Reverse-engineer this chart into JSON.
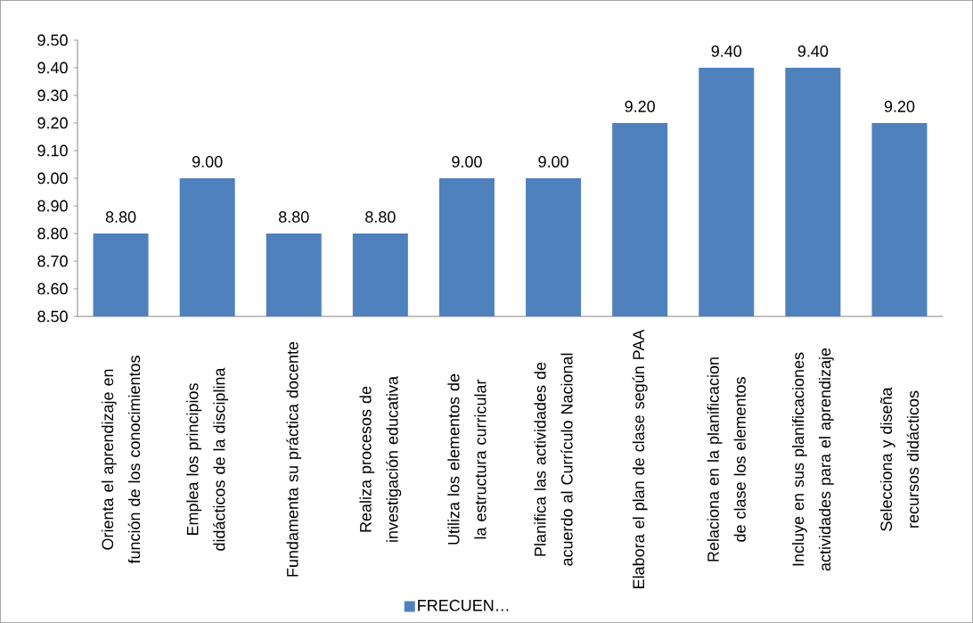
{
  "chart_data": {
    "type": "bar",
    "categories": [
      "Orienta el aprendizaje en función de los conocimientos",
      "Emplea los principios didácticos de la disciplina",
      "Fundamenta su práctica docente",
      "Realiza procesos de investigación educativa",
      "Utiliza los elementos de la estructura curricular",
      "Planifica las actividades de acuerdo al Currículo Nacional",
      "Elabora el plan de clase según PAA",
      "Relaciona en la planificacion de clase los elementos",
      "Incluye en sus planificaciones actividades para el aprendizaje",
      "Selecciona y diseña recursos didácticos"
    ],
    "series": [
      {
        "name": "FRECUEN…",
        "color": "#4f81bd",
        "values": [
          8.8,
          9.0,
          8.8,
          8.8,
          9.0,
          9.0,
          9.2,
          9.4,
          9.4,
          9.2
        ],
        "value_labels": [
          "8.80",
          "9.00",
          "8.80",
          "8.80",
          "9.00",
          "9.00",
          "9.20",
          "9.40",
          "9.40",
          "9.20"
        ]
      }
    ],
    "ylim": [
      8.5,
      9.5
    ],
    "yticks": [
      {
        "value": 8.5,
        "label": "8.50"
      },
      {
        "value": 8.6,
        "label": "8.60"
      },
      {
        "value": 8.7,
        "label": "8.70"
      },
      {
        "value": 8.8,
        "label": "8.80"
      },
      {
        "value": 8.9,
        "label": "8.90"
      },
      {
        "value": 9.0,
        "label": "9.00"
      },
      {
        "value": 9.1,
        "label": "9.10"
      },
      {
        "value": 9.2,
        "label": "9.20"
      },
      {
        "value": 9.3,
        "label": "9.30"
      },
      {
        "value": 9.4,
        "label": "9.40"
      },
      {
        "value": 9.5,
        "label": "9.50"
      }
    ],
    "legend": "bottom"
  }
}
